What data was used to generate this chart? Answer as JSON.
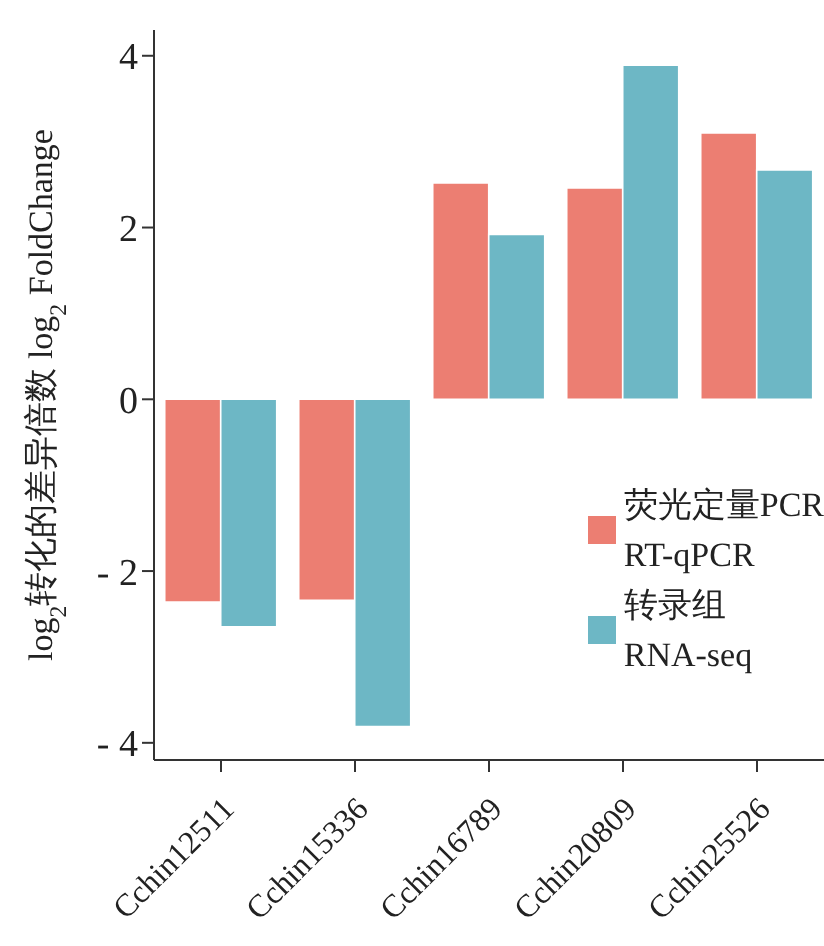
{
  "chart_data": {
    "type": "bar",
    "ylabel": "log$_{2}$转化的差异倍数 log$_{2}$ FoldChange",
    "categories": [
      "Cchin12511",
      "Cchin15336",
      "Cchin16789",
      "Cchin20809",
      "Cchin25526"
    ],
    "series": [
      {
        "name": "荧光定量PCR\nRT-qPCR",
        "color": "#ec7e72",
        "values": [
          -2.36,
          -2.34,
          2.52,
          2.46,
          3.1
        ]
      },
      {
        "name": "转录组\nRNA-seq",
        "color": "#6db7c5",
        "values": [
          -2.65,
          -3.81,
          1.92,
          3.89,
          2.67
        ]
      }
    ],
    "ylim": [
      -4.2,
      4.3
    ],
    "yticks": [
      {
        "value": -4,
        "label": "- 4"
      },
      {
        "value": -2,
        "label": "- 2"
      },
      0,
      2,
      4
    ],
    "grid": false,
    "legend": "bottom right"
  }
}
